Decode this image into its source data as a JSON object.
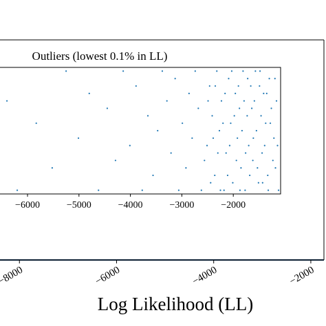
{
  "chart_data": [
    {
      "type": "scatter",
      "title": "Outliers (lowest 0.1% in LL)",
      "color": "#1f77b4",
      "x": [
        -1120,
        -1180,
        -1210,
        -1260,
        -1300,
        -1330,
        -1370,
        -1410,
        -1440,
        -1480,
        -1510,
        -1550,
        -1590,
        -1620,
        -1660,
        -1700,
        -1730,
        -1770,
        -1810,
        -1850,
        -1880,
        -1920,
        -1960,
        -2010,
        -2050,
        -2090,
        -2140,
        -2180,
        -2230,
        -2270,
        -2320,
        -2360,
        -2410,
        -2460,
        -2510,
        -2560,
        -2620,
        -2680,
        -2740,
        -2800,
        -2860,
        -2920,
        -2990,
        -3060,
        -3130,
        -3210,
        -3290,
        -3380,
        -3470,
        -3560,
        -3660,
        -3770,
        -3890,
        -4010,
        -4140,
        -4290,
        -4450,
        -4620,
        -4800,
        -5010,
        -5250,
        -5520,
        -5830,
        -6200,
        -6400,
        -1140,
        -1160,
        -1190,
        -1230,
        -1280,
        -1320,
        -1350,
        -1390,
        -1430,
        -1460,
        -1490,
        -1530,
        -1570,
        -1610,
        -1640,
        -1680,
        -1720,
        -1760,
        -1790,
        -1830,
        -1870,
        -1900,
        -1940,
        -1980,
        -2030,
        -2070,
        -2110,
        -2160,
        -2200,
        -2250,
        -2300,
        -2350,
        -2390,
        -2440,
        -2490
      ],
      "y": [
        0,
        3,
        7,
        11,
        15,
        2,
        9,
        13,
        5,
        16,
        1,
        8,
        12,
        4,
        14,
        6,
        10,
        0,
        16,
        3,
        11,
        7,
        13,
        1,
        9,
        15,
        5,
        0,
        12,
        8,
        16,
        2,
        10,
        14,
        6,
        4,
        0,
        11,
        16,
        7,
        13,
        3,
        9,
        0,
        15,
        5,
        12,
        16,
        8,
        2,
        10,
        0,
        14,
        6,
        16,
        4,
        11,
        0,
        13,
        7,
        16,
        3,
        9,
        0,
        12,
        6,
        12,
        15,
        4,
        9,
        0,
        13,
        6,
        1,
        10,
        14,
        3,
        16,
        7,
        11,
        2,
        15,
        5,
        12,
        8,
        0,
        14,
        4,
        10,
        16,
        6,
        2,
        13,
        9,
        0,
        5,
        14,
        7,
        1,
        12
      ],
      "xlim": [
        -6535,
        -1080
      ],
      "ylim": [
        -0.5,
        16.5
      ],
      "xticks": [
        {
          "value": -6000,
          "label": "−6000"
        },
        {
          "value": -5000,
          "label": "−5000"
        },
        {
          "value": -4000,
          "label": "−4000"
        },
        {
          "value": -3000,
          "label": "−3000"
        },
        {
          "value": -2000,
          "label": "−2000"
        }
      ]
    },
    {
      "type": "scatter",
      "xlabel": "Log Likelihood (LL)",
      "xlim": [
        -8400,
        -1730
      ],
      "xticks": [
        {
          "value": -8000,
          "label": "−8000"
        },
        {
          "value": -6000,
          "label": "−6000"
        },
        {
          "value": -4000,
          "label": "−4000"
        },
        {
          "value": -2000,
          "label": "−2000"
        }
      ]
    }
  ]
}
